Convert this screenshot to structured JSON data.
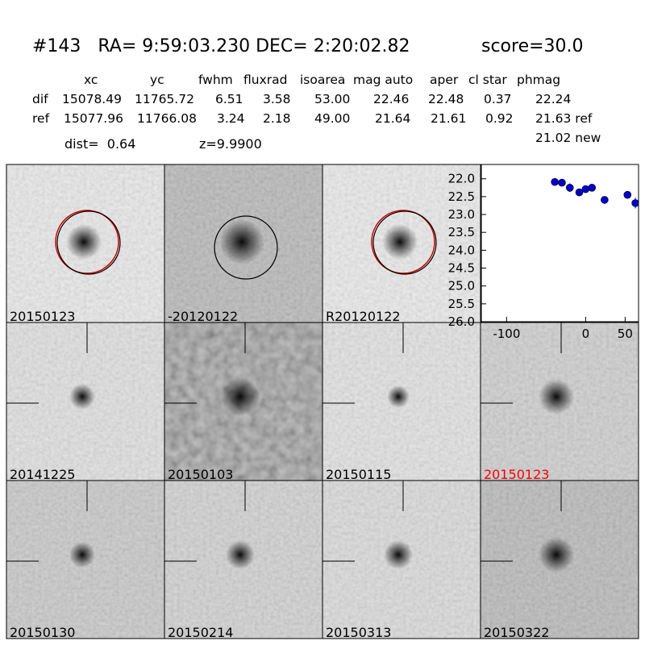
{
  "header": {
    "title": "#143   RA= 9:59:03.230 DEC= 2:20:02.82",
    "score": "score=30.0"
  },
  "table": {
    "columns": [
      "xc",
      "yc",
      "fwhm",
      "fluxrad",
      "isoarea",
      "mag auto",
      "aper",
      "cl star",
      "phmag"
    ],
    "rows": [
      [
        "dif",
        "15078.49",
        "11765.72",
        "6.51",
        "3.58",
        "53.00",
        "22.46",
        "22.48",
        "0.37",
        "22.24"
      ],
      [
        "ref",
        "15077.96",
        "11766.08",
        "3.24",
        "2.18",
        "49.00",
        "21.64",
        "21.61",
        "0.92",
        "21.63 ref"
      ]
    ],
    "new": "21.02 new"
  },
  "info": {
    "dist": "dist=  0.64",
    "z": "z=9.9900"
  },
  "stamps": [
    "20150123",
    "-20120122",
    "R20120122",
    "20141225",
    "20150103",
    "20150115",
    "20150123",
    "20150130",
    "20150214",
    "20150313",
    "20150322"
  ],
  "chart_data": {
    "type": "scatter",
    "color": "#0000cc",
    "x": [
      -39,
      -30,
      -20,
      -8,
      0,
      8,
      24,
      53,
      63
    ],
    "values": [
      22.09,
      22.11,
      22.25,
      22.38,
      22.29,
      22.25,
      22.59,
      22.45,
      22.68
    ],
    "errors": [
      0.04,
      0.03,
      0.12,
      0.05,
      0.05,
      0.07,
      0.06,
      0.06,
      0.15
    ],
    "xlim": [
      -132,
      67
    ],
    "ylim": [
      21.6,
      26.0
    ],
    "y_inverted": true,
    "xticks": [
      -100,
      0,
      50
    ],
    "yticks": [
      {
        "value": 22.0,
        "label": "22.0"
      },
      {
        "value": 22.5,
        "label": "22.5"
      },
      {
        "value": 23.0,
        "label": "23.0"
      },
      {
        "value": 23.5,
        "label": "23.5"
      },
      {
        "value": 24.0,
        "label": "24.0"
      },
      {
        "value": 24.5,
        "label": "24.5"
      },
      {
        "value": 25.0,
        "label": "25.0"
      },
      {
        "value": 25.5,
        "label": "25.5"
      },
      {
        "value": 26.0,
        "label": "26.0"
      }
    ]
  }
}
